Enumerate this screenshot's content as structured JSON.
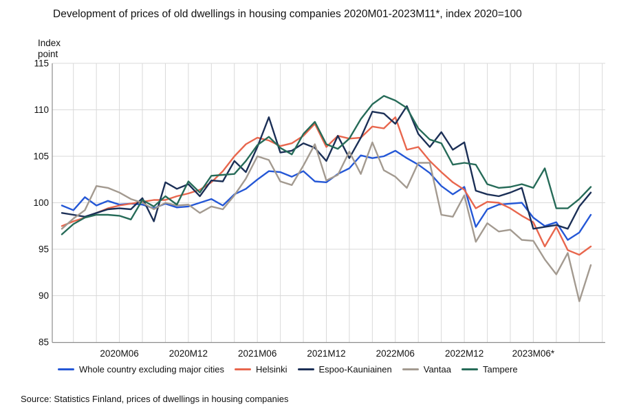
{
  "title": "Development of prices of old dwellings in housing companies 2020M01-2023M11*, index 2020=100",
  "y_axis_unit": "Index\npoint",
  "source": "Source: Statistics Finland, prices of dwellings in housing companies",
  "chart_data": {
    "type": "line",
    "title": "Development of prices of old dwellings in housing companies 2020M01-2023M11*, index 2020=100",
    "ylabel": "Index point",
    "ylim": [
      85,
      115
    ],
    "y_ticks": [
      115,
      110,
      105,
      100,
      95,
      90,
      85
    ],
    "grid": true,
    "legend_position": "bottom",
    "x_tick_labels": [
      {
        "index": 5,
        "label": "2020M06"
      },
      {
        "index": 11,
        "label": "2020M12"
      },
      {
        "index": 17,
        "label": "2021M06"
      },
      {
        "index": 23,
        "label": "2021M12"
      },
      {
        "index": 29,
        "label": "2022M06"
      },
      {
        "index": 35,
        "label": "2022M12"
      },
      {
        "index": 41,
        "label": "2023M06*"
      }
    ],
    "categories": [
      "2020M01",
      "2020M02",
      "2020M03",
      "2020M04",
      "2020M05",
      "2020M06",
      "2020M07",
      "2020M08",
      "2020M09",
      "2020M10",
      "2020M11",
      "2020M12",
      "2021M01",
      "2021M02",
      "2021M03",
      "2021M04",
      "2021M05",
      "2021M06",
      "2021M07",
      "2021M08",
      "2021M09",
      "2021M10",
      "2021M11",
      "2021M12",
      "2022M01",
      "2022M02",
      "2022M03",
      "2022M04",
      "2022M05",
      "2022M06",
      "2022M07",
      "2022M08",
      "2022M09",
      "2022M10",
      "2022M11",
      "2022M12",
      "2023M01",
      "2023M02",
      "2023M03",
      "2023M04",
      "2023M05",
      "2023M06",
      "2023M07",
      "2023M08",
      "2023M09",
      "2023M10",
      "2023M11"
    ],
    "series": [
      {
        "name": "Whole country excluding major cities",
        "color": "#2457D6",
        "values": [
          99.7,
          99.2,
          100.6,
          99.7,
          100.2,
          99.8,
          99.9,
          99.8,
          99.4,
          99.9,
          99.5,
          99.6,
          100.0,
          100.4,
          99.7,
          100.9,
          101.5,
          102.5,
          103.4,
          103.3,
          102.8,
          103.4,
          102.3,
          102.2,
          103.1,
          103.7,
          105.1,
          104.8,
          105.0,
          105.6,
          104.8,
          104.1,
          103.2,
          101.8,
          100.9,
          101.7,
          97.4,
          99.3,
          99.8,
          99.9,
          100.0,
          98.4,
          97.5,
          97.9,
          96.0,
          96.8,
          98.7
        ]
      },
      {
        "name": "Helsinki",
        "color": "#E8664D",
        "values": [
          97.5,
          98.0,
          98.4,
          98.9,
          99.4,
          99.7,
          99.9,
          100.1,
          100.3,
          100.3,
          100.7,
          101.0,
          101.4,
          102.2,
          103.4,
          105.0,
          106.3,
          107.0,
          106.7,
          106.1,
          106.4,
          107.2,
          108.5,
          106.0,
          107.2,
          106.9,
          107.0,
          108.2,
          108.0,
          109.2,
          105.7,
          106.0,
          104.5,
          103.3,
          102.2,
          101.4,
          99.4,
          100.1,
          100.0,
          99.4,
          98.6,
          97.9,
          95.3,
          97.4,
          94.9,
          94.4,
          95.3
        ]
      },
      {
        "name": "Espoo-Kauniainen",
        "color": "#1B2F56",
        "values": [
          98.9,
          98.7,
          98.5,
          98.9,
          99.3,
          99.4,
          99.3,
          100.5,
          98.0,
          102.2,
          101.5,
          102.0,
          100.7,
          102.4,
          102.3,
          104.5,
          103.3,
          106.0,
          109.2,
          105.4,
          105.6,
          106.4,
          105.9,
          104.5,
          107.2,
          104.8,
          107.0,
          109.8,
          109.6,
          108.5,
          110.4,
          107.4,
          106.0,
          107.6,
          105.7,
          106.5,
          101.3,
          100.9,
          100.7,
          101.1,
          101.6,
          97.2,
          97.4,
          97.6,
          97.2,
          99.6,
          101.1
        ]
      },
      {
        "name": "Vantaa",
        "color": "#A39A90",
        "values": [
          97.2,
          98.3,
          99.2,
          101.8,
          101.6,
          101.1,
          100.4,
          100.0,
          99.3,
          100.0,
          99.7,
          99.8,
          98.9,
          99.6,
          99.3,
          100.8,
          102.6,
          105.0,
          104.6,
          102.3,
          101.9,
          104.0,
          106.3,
          102.4,
          103.0,
          105.5,
          103.1,
          106.5,
          103.5,
          102.8,
          101.6,
          104.3,
          104.3,
          98.7,
          98.5,
          100.8,
          95.8,
          97.8,
          96.9,
          97.1,
          96.0,
          95.9,
          93.9,
          92.3,
          94.6,
          89.4,
          93.3
        ]
      },
      {
        "name": "Tampere",
        "color": "#266B58",
        "values": [
          96.6,
          97.7,
          98.4,
          98.7,
          98.7,
          98.6,
          98.2,
          100.3,
          99.6,
          100.7,
          99.8,
          102.3,
          101.1,
          102.9,
          103.0,
          103.1,
          104.5,
          106.2,
          107.1,
          105.9,
          105.2,
          107.4,
          108.7,
          106.3,
          105.8,
          106.9,
          109.0,
          110.6,
          111.5,
          111.0,
          110.2,
          108.0,
          106.8,
          106.4,
          104.1,
          104.3,
          104.1,
          102.0,
          101.6,
          101.7,
          102.0,
          101.6,
          103.7,
          99.4,
          99.4,
          100.4,
          101.7
        ]
      }
    ]
  }
}
